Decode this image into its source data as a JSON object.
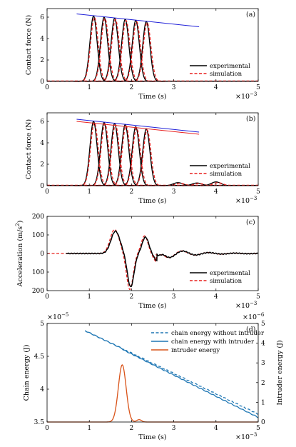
{
  "chart_data": [
    {
      "type": "line",
      "panel_label": "(a)",
      "xlabel": "Time (s)",
      "ylabel": "Contact force (N)",
      "x_exponent": "×10",
      "x_exponent_power": "−3",
      "xlim": [
        0,
        5
      ],
      "ylim": [
        0,
        6.8
      ],
      "xticks": [
        0,
        1,
        2,
        3,
        4,
        5
      ],
      "yticks": [
        0,
        2,
        4,
        6
      ],
      "legend": {
        "placement": "right",
        "entries": [
          "experimental",
          "simulation"
        ]
      },
      "pulses": {
        "centers_ms": [
          1.1,
          1.35,
          1.6,
          1.85,
          2.1,
          2.35
        ],
        "peaks_N": [
          6.1,
          6.0,
          5.9,
          5.8,
          5.7,
          5.6
        ],
        "width_ms": 0.12
      },
      "series": [
        {
          "name": "experimental",
          "color": "#000000",
          "style": "solid"
        },
        {
          "name": "simulation",
          "color": "#e8201f",
          "style": "dashed"
        }
      ],
      "envelopes": [
        {
          "color": "#1f1fd8",
          "x": [
            0.7,
            3.6
          ],
          "y": [
            6.3,
            5.1
          ]
        }
      ]
    },
    {
      "type": "line",
      "panel_label": "(b)",
      "xlabel": "Time (s)",
      "ylabel": "Contact force (N)",
      "x_exponent": "×10",
      "x_exponent_power": "−3",
      "xlim": [
        0,
        5
      ],
      "ylim": [
        0,
        6.8
      ],
      "xticks": [
        0,
        1,
        2,
        3,
        4,
        5
      ],
      "yticks": [
        0,
        2,
        4,
        6
      ],
      "legend": {
        "placement": "right",
        "entries": [
          "experimental",
          "simulation"
        ]
      },
      "pulses": {
        "centers_ms": [
          1.1,
          1.35,
          1.6,
          1.85,
          2.1,
          2.35
        ],
        "peaks_N": [
          6.0,
          5.9,
          5.8,
          5.7,
          5.5,
          5.3
        ],
        "width_ms": 0.12
      },
      "series": [
        {
          "name": "experimental",
          "color": "#000000",
          "style": "solid"
        },
        {
          "name": "simulation",
          "color": "#e8201f",
          "style": "dashed"
        }
      ],
      "envelopes": [
        {
          "color": "#1f1fd8",
          "x": [
            0.7,
            3.6
          ],
          "y": [
            6.2,
            5.0
          ]
        },
        {
          "color": "#e8201f",
          "x": [
            0.7,
            3.6
          ],
          "y": [
            6.0,
            4.8
          ]
        }
      ]
    },
    {
      "type": "line",
      "panel_label": "(c)",
      "xlabel": "Time (s)",
      "ylabel": "Acceleration (m/s",
      "ylabel_power": "2",
      "ylabel_close": ")",
      "x_exponent": "×10",
      "x_exponent_power": "−3",
      "xlim": [
        0,
        5
      ],
      "ylim": [
        -200,
        200
      ],
      "xticks": [
        0,
        1,
        2,
        3,
        4,
        5
      ],
      "yticks": [
        -200,
        -100,
        0,
        100,
        200
      ],
      "ytick_labels": [
        "200",
        "100",
        "0",
        "100",
        "200"
      ],
      "legend": {
        "placement": "bottom-right",
        "entries": [
          "experimental",
          "simulation"
        ]
      },
      "series": [
        {
          "name": "experimental",
          "color": "#000000",
          "style": "solid"
        },
        {
          "name": "simulation",
          "color": "#e8201f",
          "style": "dashed"
        }
      ]
    },
    {
      "type": "line",
      "panel_label": "(d)",
      "xlabel": "Time (s)",
      "ylabel_left": "Chain energy (J)",
      "ylabel_right": "Intruder energy (J)",
      "x_exponent": "×10",
      "x_exponent_power": "−3",
      "left_exponent": "×10",
      "left_exponent_power": "−5",
      "right_exponent": "×10",
      "right_exponent_power": "−6",
      "xlim": [
        0,
        5
      ],
      "ylim_left": [
        3.5,
        5
      ],
      "ylim_right": [
        0,
        5
      ],
      "xticks": [
        0,
        1,
        2,
        3,
        4,
        5
      ],
      "yticks_left": [
        3.5,
        4,
        4.5,
        5
      ],
      "yticks_right": [
        0,
        1,
        2,
        3,
        4,
        5
      ],
      "left_color": "#1f77b4",
      "right_color": "#d95319",
      "legend": {
        "placement": "top-right",
        "entries": [
          "chain energy without intruder",
          "chain energy with intruder",
          "intruder energy"
        ]
      },
      "series": [
        {
          "name": "chain energy without intruder",
          "color": "#1f77b4",
          "style": "dashed",
          "axis": "left",
          "x": [
            0.9,
            5.0
          ],
          "y": [
            4.89,
            3.62
          ]
        },
        {
          "name": "chain energy with intruder",
          "color": "#1f77b4",
          "style": "solid",
          "axis": "left",
          "x": [
            0.9,
            5.0
          ],
          "y": [
            4.89,
            3.57
          ]
        },
        {
          "name": "intruder energy",
          "color": "#d95319",
          "style": "solid",
          "axis": "right",
          "peak_x": 1.78,
          "peak_y": 2.9
        }
      ]
    }
  ]
}
